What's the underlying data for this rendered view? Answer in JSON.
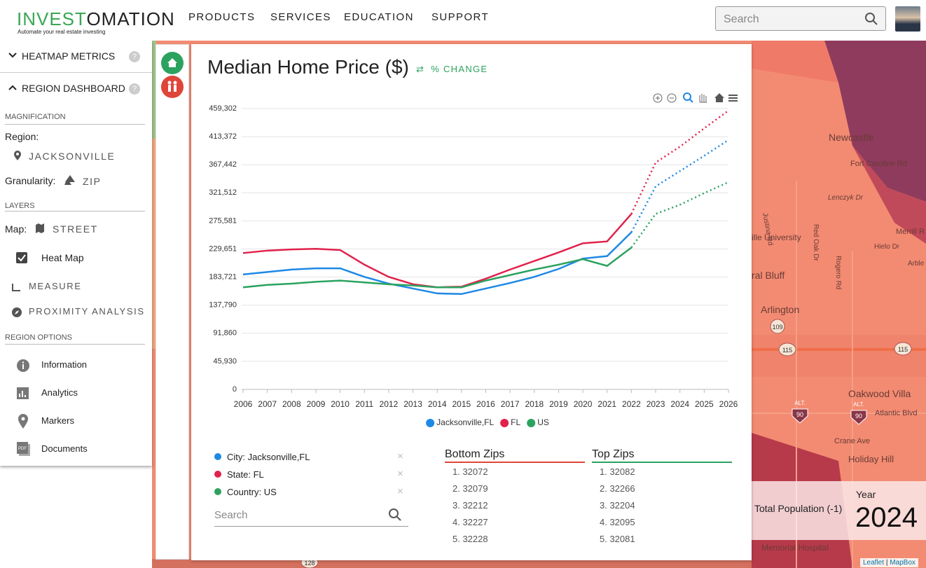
{
  "header": {
    "logo_part1": "INVEST",
    "logo_part2": "OMATION",
    "tagline": "Automate your real estate investing",
    "nav": [
      "PRODUCTS",
      "SERVICES",
      "EDUCATION",
      "SUPPORT"
    ],
    "search_placeholder": "Search"
  },
  "sidebar": {
    "heatmap_metrics": "HEATMAP METRICS",
    "region_dashboard": "REGION DASHBOARD",
    "magnification": "MAGNIFICATION",
    "region_label": "Region:",
    "region_value": "JACKSONVILLE",
    "granularity_label": "Granularity:",
    "granularity_value": "ZIP",
    "layers": "LAYERS",
    "map_label": "Map:",
    "map_value": "STREET",
    "heat_map": "Heat Map",
    "measure": "MEASURE",
    "proximity": "PROXIMITY ANALYSIS",
    "region_options": "REGION OPTIONS",
    "options": [
      "Information",
      "Analytics",
      "Markers",
      "Documents"
    ]
  },
  "panel": {
    "title": "Median Home Price ($)",
    "toggle": "% CHANGE",
    "selections": [
      "City: Jacksonville,FL",
      "State: FL",
      "Country: US"
    ],
    "search_placeholder": "Search",
    "bottom_zips_title": "Bottom Zips",
    "bottom_zips": [
      "1. 32072",
      "2. 32079",
      "3. 32212",
      "4. 32227",
      "5. 32228"
    ],
    "top_zips_title": "Top Zips",
    "top_zips": [
      "1. 32082",
      "2. 32266",
      "3. 32204",
      "4. 32095",
      "5. 32081"
    ]
  },
  "chart_data": {
    "type": "line",
    "x": [
      2006,
      2007,
      2008,
      2009,
      2010,
      2011,
      2012,
      2013,
      2014,
      2015,
      2016,
      2017,
      2018,
      2019,
      2020,
      2021,
      2022,
      2023,
      2024,
      2025,
      2026
    ],
    "xlim": [
      2006,
      2026
    ],
    "xticks": [
      2006,
      2007,
      2008,
      2009,
      2010,
      2011,
      2012,
      2013,
      2014,
      2015,
      2016,
      2017,
      2018,
      2019,
      2020,
      2021,
      2022,
      2023,
      2024,
      2025,
      2026
    ],
    "ylim": [
      0,
      459302
    ],
    "yticks": [
      {
        "value": 0,
        "label": "0"
      },
      {
        "value": 45930,
        "label": "45,930"
      },
      {
        "value": 91860,
        "label": "91,860"
      },
      {
        "value": 137790,
        "label": "137,790"
      },
      {
        "value": 183721,
        "label": "183,721"
      },
      {
        "value": 229651,
        "label": "229,651"
      },
      {
        "value": 275581,
        "label": "275,581"
      },
      {
        "value": 321512,
        "label": "321,512"
      },
      {
        "value": 367442,
        "label": "367,442"
      },
      {
        "value": 413372,
        "label": "413,372"
      },
      {
        "value": 459302,
        "label": "459,302"
      }
    ],
    "grid": true,
    "forecast_from": 2022,
    "series": [
      {
        "name": "Jacksonville,FL",
        "color": "#1e88e5",
        "values": [
          188000,
          192000,
          196000,
          198000,
          198000,
          184000,
          173000,
          165000,
          157000,
          156000,
          165000,
          174000,
          184000,
          197000,
          214000,
          218000,
          257000,
          332000,
          357000,
          382000,
          408000
        ]
      },
      {
        "name": "FL",
        "color": "#e0224b",
        "values": [
          223000,
          227000,
          229000,
          230000,
          228000,
          204000,
          184000,
          172000,
          167000,
          168000,
          181000,
          196000,
          210000,
          224000,
          239000,
          242000,
          287000,
          371000,
          397000,
          427000,
          456000
        ]
      },
      {
        "name": "US",
        "color": "#2ca25f",
        "values": [
          167000,
          171000,
          173000,
          176000,
          178000,
          175000,
          172000,
          170000,
          167000,
          167000,
          178000,
          187000,
          196000,
          204000,
          213000,
          202000,
          232000,
          287000,
          302000,
          321000,
          339000
        ]
      }
    ]
  },
  "map": {
    "labels": [
      "Newcastle",
      "Fort Caroline Rd",
      "Lenczyk Dr",
      "Merrill R",
      "Hielo Dr",
      "Arble",
      "ille University",
      "ral Bluff",
      "Arlington",
      "Oakwood Villa",
      "Atlantic Blvd",
      "Crane Ave",
      "Holiday Hill",
      "Memorial Hospital",
      "Justina Rd",
      "Red Oak Dr",
      "Rogero Rd"
    ],
    "shields": [
      "109",
      "115",
      "115",
      "90",
      "90",
      "128"
    ],
    "alt": "ALT.",
    "population": "Total Population (-1)",
    "year_label": "Year",
    "year": "2024",
    "attribution_1": "Leaflet",
    "attribution_sep": "|",
    "attribution_2": "MapBox"
  }
}
